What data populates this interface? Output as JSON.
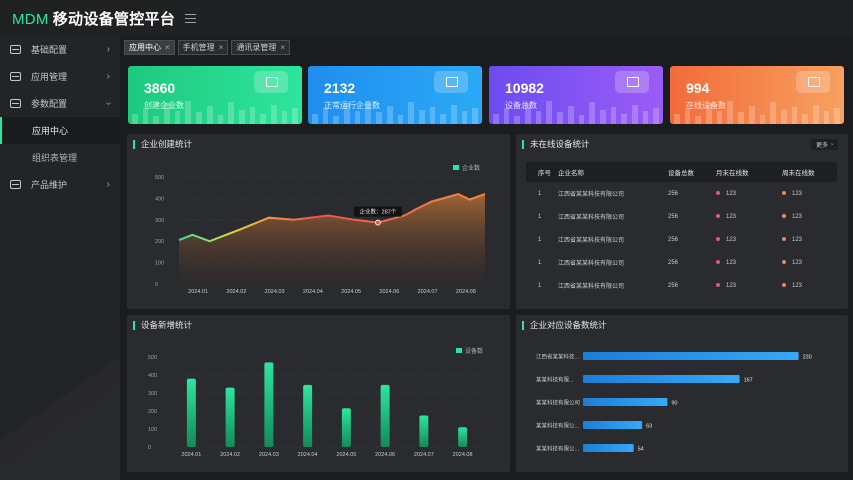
{
  "header": {
    "brand": "MDM",
    "title": "移动设备管控平台"
  },
  "sidebar": {
    "items": [
      {
        "label": "基础配置",
        "icon": "box-icon",
        "expanded": false
      },
      {
        "label": "应用管理",
        "icon": "box-icon",
        "expanded": false
      },
      {
        "label": "参数配置",
        "icon": "box-icon",
        "expanded": true,
        "children": [
          {
            "label": "应用中心",
            "active": true
          },
          {
            "label": "组织表管理",
            "active": false
          }
        ]
      },
      {
        "label": "产品维护",
        "icon": "box-icon",
        "expanded": false
      }
    ]
  },
  "tabs": [
    {
      "label": "应用中心",
      "active": true
    },
    {
      "label": "手机管理",
      "active": false
    },
    {
      "label": "通讯录管理",
      "active": false
    }
  ],
  "stats": [
    {
      "value": "3860",
      "label": "创建企业数",
      "color_from": "#1ec97e",
      "color_to": "#2ee59d"
    },
    {
      "value": "2132",
      "label": "正常运行企业数",
      "color_from": "#1f8ef0",
      "color_to": "#2ba9f5"
    },
    {
      "value": "10982",
      "label": "设备总数",
      "color_from": "#6c4cf0",
      "color_to": "#9b5cf6"
    },
    {
      "value": "994",
      "label": "在线设备数",
      "color_from": "#f26b3a",
      "color_to": "#f7a160"
    }
  ],
  "enterprise_chart": {
    "title": "企业创建统计",
    "legend": "企业数",
    "tooltip": "企业数：287个",
    "chart_data": {
      "type": "area",
      "categories": [
        "2024.01",
        "2024.02",
        "2024.03",
        "2024.04",
        "2024.05",
        "2024.06",
        "2024.07",
        "2024.08"
      ],
      "x": [
        0,
        0.35,
        0.8,
        1.6,
        2.35,
        3.0,
        3.9,
        4.6,
        5.2,
        5.9,
        6.2,
        6.6,
        7.3,
        7.6,
        8.0
      ],
      "y": [
        205,
        230,
        200,
        255,
        310,
        300,
        320,
        300,
        287,
        320,
        350,
        385,
        420,
        395,
        420
      ],
      "series_name": "企业数",
      "ylim": [
        0,
        500
      ],
      "yticks": [
        "500",
        "400",
        "300",
        "200",
        "100",
        "0"
      ]
    }
  },
  "offline_table": {
    "title": "未在线设备统计",
    "more": "更多",
    "columns": [
      "序号",
      "企业名称",
      "设备总数",
      "月未在线数",
      "周未在线数"
    ],
    "rows": [
      [
        "1",
        "江西省某某科技有限公司",
        "256",
        "123",
        "123"
      ],
      [
        "1",
        "江西省某某科技有限公司",
        "256",
        "123",
        "123"
      ],
      [
        "1",
        "江西省某某科技有限公司",
        "256",
        "123",
        "123"
      ],
      [
        "1",
        "江西省某某科技有限公司",
        "256",
        "123",
        "123"
      ],
      [
        "1",
        "江西省某某科技有限公司",
        "256",
        "123",
        "123"
      ]
    ]
  },
  "device_chart": {
    "title": "设备新增统计",
    "legend": "设备数",
    "chart_data": {
      "type": "bar",
      "categories": [
        "2024.01",
        "2024.02",
        "2024.03",
        "2024.04",
        "2024.05",
        "2024.06",
        "2024.07",
        "2024.08"
      ],
      "values": [
        380,
        330,
        470,
        345,
        215,
        345,
        175,
        110
      ],
      "series_name": "设备数",
      "ylim": [
        0,
        500
      ],
      "yticks": [
        "500",
        "400",
        "300",
        "200",
        "100",
        "0"
      ]
    }
  },
  "company_devices": {
    "title": "企业对应设备数统计",
    "chart_data": {
      "type": "bar",
      "orientation": "horizontal",
      "categories": [
        "江西省某某科技...",
        "某某科技有限...",
        "某某科技有限公司",
        "某某科技有限公...",
        "某某科技有限公..."
      ],
      "values": [
        230,
        167,
        90,
        63,
        54
      ],
      "xlim": [
        0,
        240
      ]
    }
  }
}
